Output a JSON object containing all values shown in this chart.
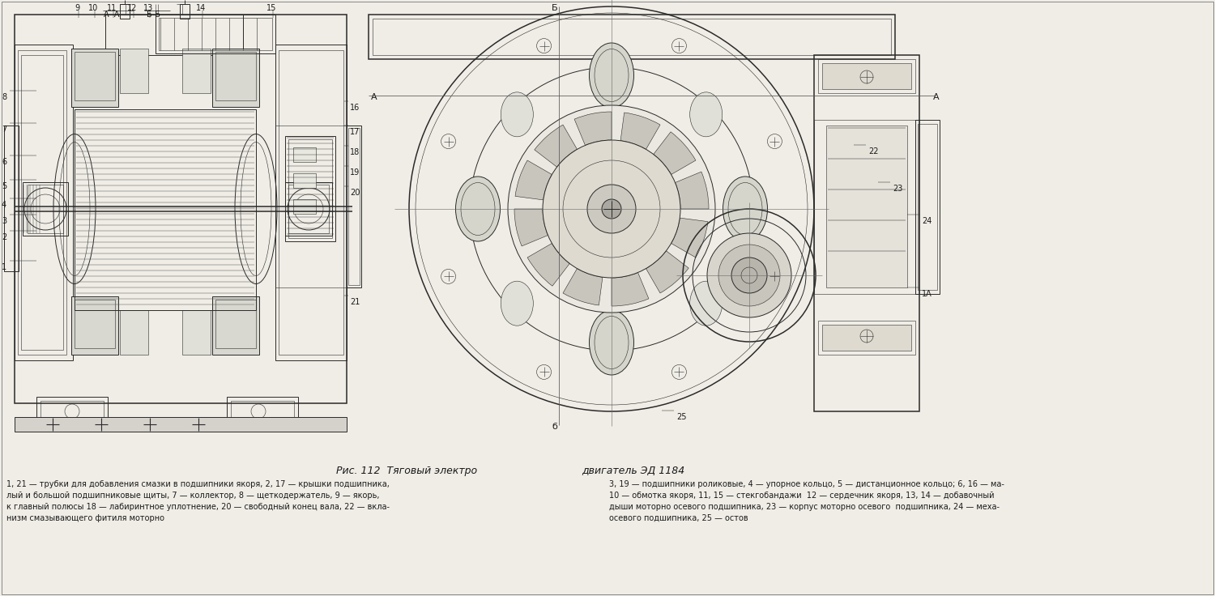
{
  "background_color": "#f5f5f0",
  "title_part1": "Рис. 112  Тяговый электро",
  "title_part2": "двигатель ЭД 1184",
  "caption_left_lines": [
    "1, 21 — трубки для добавления смазки в подшипники якоря, 2, 17 — крышки подшипника,",
    "лый и большой подшипниковые щиты, 7 — коллектор, 8 — щеткодержатель, 9 — якорь,",
    "к главный полюсы 18 — лабиринтное уплотнение, 20 — свободный конец вала, 22 — вкла-",
    "низм смазывающего фитиля моторно"
  ],
  "caption_right_lines": [
    "3, 19 — подшипники роликовые, 4 — упорное кольцо, 5 — дистанционное кольцо; 6, 16 — ма-",
    "10 — обмотка якоря, 11, 15 — стекгобандажи  12 — сердечник якоря, 13, 14 — добавочный",
    "дыши моторно осевого подшипника, 23 — корпус моторно осевого  подшипника, 24 — меха-",
    "осевого подшипника, 25 — остов"
  ],
  "fig_width": 15.0,
  "fig_height": 7.36,
  "dpi": 100,
  "image_bg": "#f0ede6",
  "border_color": "#333333",
  "text_color": "#1a1a1a",
  "drawing_color": "#2a2a2a",
  "title_fontsize": 9,
  "caption_fontsize": 7.0,
  "left_numbers": [
    [
      "8",
      2,
      115
    ],
    [
      "7",
      2,
      155
    ],
    [
      "6",
      2,
      195
    ],
    [
      "5",
      2,
      225
    ],
    [
      "4",
      2,
      248
    ],
    [
      "3",
      2,
      268
    ],
    [
      "2",
      2,
      288
    ],
    [
      "1",
      2,
      325
    ]
  ],
  "top_numbers": [
    [
      "9",
      95,
      5
    ],
    [
      "10",
      115,
      5
    ],
    [
      "11",
      138,
      5
    ],
    [
      "12",
      163,
      5
    ],
    [
      "13",
      183,
      5
    ],
    [
      "14",
      248,
      5
    ],
    [
      "15",
      335,
      5
    ]
  ],
  "right_numbers": [
    [
      "16",
      432,
      128
    ],
    [
      "17",
      432,
      158
    ],
    [
      "18",
      432,
      183
    ],
    [
      "19",
      432,
      208
    ],
    [
      "20",
      432,
      233
    ],
    [
      "21",
      432,
      368
    ]
  ],
  "right_view_numbers": [
    [
      "22",
      1072,
      182
    ],
    [
      "23",
      1102,
      228
    ],
    [
      "24",
      1138,
      268
    ],
    [
      "25",
      835,
      510
    ],
    [
      "1A",
      1138,
      358
    ]
  ]
}
